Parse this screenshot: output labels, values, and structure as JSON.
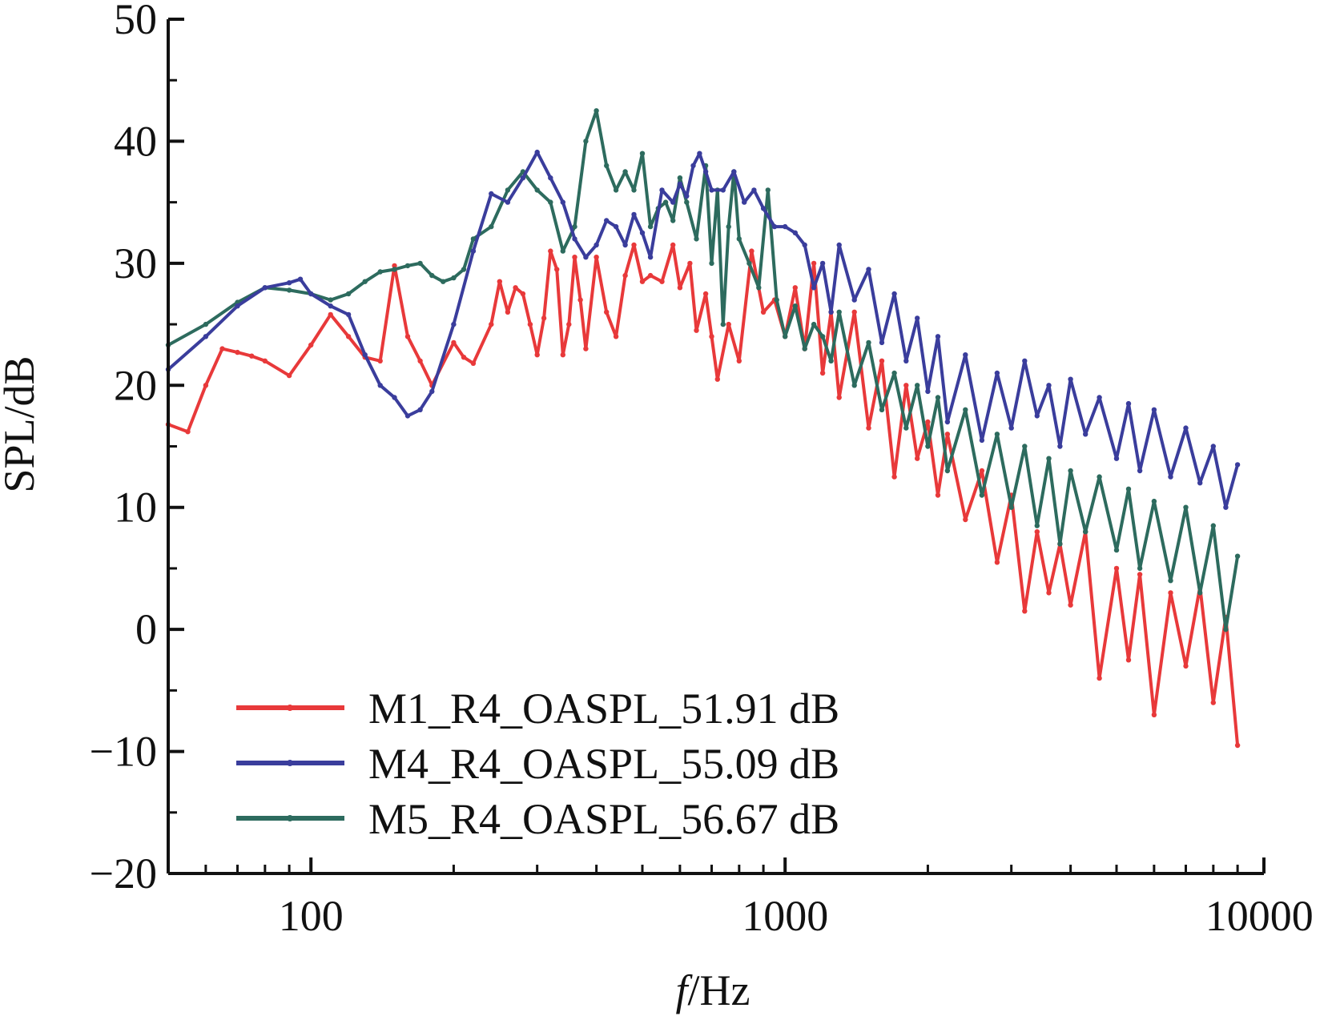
{
  "chart_data": {
    "type": "line",
    "title": "",
    "xlabel_italic": "f",
    "xlabel_rest": "/Hz",
    "ylabel": "SPL/dB",
    "x_scale": "log",
    "xlim": [
      50,
      9000
    ],
    "ylim": [
      -20,
      50
    ],
    "x_tick_labels": [
      "100",
      "1000",
      "10000"
    ],
    "x_tick_values": [
      100,
      1000,
      10000
    ],
    "y_tick_labels": [
      "-20",
      "-10",
      "0",
      "10",
      "20",
      "30",
      "40",
      "50"
    ],
    "y_tick_values": [
      -20,
      -10,
      0,
      10,
      20,
      30,
      40,
      50
    ],
    "grid": false,
    "legend_position": "bottom-left",
    "series": [
      {
        "name": "M1_R4_OASPL_51.91 dB",
        "color": "#e8393a",
        "points": [
          [
            50,
            16.8
          ],
          [
            55,
            16.2
          ],
          [
            60,
            20
          ],
          [
            65,
            23
          ],
          [
            70,
            22.7
          ],
          [
            75,
            22.4
          ],
          [
            80,
            22
          ],
          [
            90,
            20.8
          ],
          [
            100,
            23.3
          ],
          [
            110,
            25.8
          ],
          [
            120,
            24
          ],
          [
            130,
            22.3
          ],
          [
            140,
            22
          ],
          [
            150,
            29.8
          ],
          [
            160,
            24
          ],
          [
            170,
            22
          ],
          [
            180,
            20
          ],
          [
            200,
            23.5
          ],
          [
            210,
            22.3
          ],
          [
            220,
            21.8
          ],
          [
            240,
            25
          ],
          [
            250,
            28.5
          ],
          [
            260,
            26
          ],
          [
            270,
            28
          ],
          [
            280,
            27.5
          ],
          [
            290,
            25
          ],
          [
            300,
            22.5
          ],
          [
            310,
            25.5
          ],
          [
            320,
            31
          ],
          [
            330,
            29.5
          ],
          [
            340,
            22.5
          ],
          [
            350,
            25
          ],
          [
            360,
            30.5
          ],
          [
            370,
            27
          ],
          [
            380,
            23
          ],
          [
            400,
            30.5
          ],
          [
            420,
            26
          ],
          [
            440,
            24
          ],
          [
            460,
            29
          ],
          [
            480,
            31.5
          ],
          [
            500,
            28.5
          ],
          [
            520,
            29
          ],
          [
            550,
            28.5
          ],
          [
            580,
            31.5
          ],
          [
            600,
            28
          ],
          [
            630,
            30
          ],
          [
            650,
            24.5
          ],
          [
            680,
            27.5
          ],
          [
            700,
            24
          ],
          [
            720,
            20.5
          ],
          [
            760,
            25
          ],
          [
            800,
            22
          ],
          [
            850,
            31
          ],
          [
            900,
            26
          ],
          [
            950,
            27
          ],
          [
            1000,
            24
          ],
          [
            1050,
            28
          ],
          [
            1100,
            23
          ],
          [
            1150,
            30
          ],
          [
            1200,
            21
          ],
          [
            1250,
            26
          ],
          [
            1300,
            19
          ],
          [
            1400,
            26
          ],
          [
            1500,
            16.5
          ],
          [
            1600,
            22
          ],
          [
            1700,
            12.5
          ],
          [
            1800,
            20
          ],
          [
            1900,
            14
          ],
          [
            2000,
            17
          ],
          [
            2100,
            11
          ],
          [
            2200,
            16
          ],
          [
            2400,
            9
          ],
          [
            2600,
            13
          ],
          [
            2800,
            5.5
          ],
          [
            3000,
            11
          ],
          [
            3200,
            1.5
          ],
          [
            3400,
            8
          ],
          [
            3600,
            3
          ],
          [
            3800,
            7
          ],
          [
            4000,
            2
          ],
          [
            4300,
            8
          ],
          [
            4600,
            -4
          ],
          [
            5000,
            5
          ],
          [
            5300,
            -2.5
          ],
          [
            5600,
            4.5
          ],
          [
            6000,
            -7
          ],
          [
            6500,
            3
          ],
          [
            7000,
            -3
          ],
          [
            7500,
            3.5
          ],
          [
            8000,
            -6
          ],
          [
            8500,
            1
          ],
          [
            9000,
            -9.5
          ]
        ]
      },
      {
        "name": "M4_R4_OASPL_55.09 dB",
        "color": "#3a3d9c",
        "points": [
          [
            50,
            21.3
          ],
          [
            60,
            24
          ],
          [
            70,
            26.5
          ],
          [
            80,
            28
          ],
          [
            90,
            28.4
          ],
          [
            95,
            28.7
          ],
          [
            100,
            27.5
          ],
          [
            110,
            26.5
          ],
          [
            120,
            25.8
          ],
          [
            130,
            22.5
          ],
          [
            140,
            20
          ],
          [
            150,
            19
          ],
          [
            160,
            17.5
          ],
          [
            170,
            18
          ],
          [
            180,
            19.5
          ],
          [
            200,
            25
          ],
          [
            220,
            31
          ],
          [
            240,
            35.7
          ],
          [
            260,
            35
          ],
          [
            280,
            37
          ],
          [
            300,
            39.1
          ],
          [
            320,
            37
          ],
          [
            340,
            35
          ],
          [
            360,
            32
          ],
          [
            380,
            30.5
          ],
          [
            400,
            31.5
          ],
          [
            420,
            33.5
          ],
          [
            440,
            33
          ],
          [
            460,
            31.5
          ],
          [
            480,
            34
          ],
          [
            500,
            32.5
          ],
          [
            520,
            30.5
          ],
          [
            550,
            36
          ],
          [
            580,
            35
          ],
          [
            600,
            36.5
          ],
          [
            620,
            35.5
          ],
          [
            640,
            38
          ],
          [
            660,
            39
          ],
          [
            680,
            37.5
          ],
          [
            700,
            36
          ],
          [
            740,
            36
          ],
          [
            780,
            37.5
          ],
          [
            820,
            35
          ],
          [
            860,
            36
          ],
          [
            900,
            34.5
          ],
          [
            950,
            33
          ],
          [
            1000,
            33
          ],
          [
            1050,
            32.5
          ],
          [
            1100,
            31.5
          ],
          [
            1150,
            28
          ],
          [
            1200,
            30
          ],
          [
            1250,
            26
          ],
          [
            1300,
            31.5
          ],
          [
            1400,
            27
          ],
          [
            1500,
            29.5
          ],
          [
            1600,
            23.5
          ],
          [
            1700,
            27.5
          ],
          [
            1800,
            22
          ],
          [
            1900,
            25.5
          ],
          [
            2000,
            19.5
          ],
          [
            2100,
            24
          ],
          [
            2200,
            17
          ],
          [
            2400,
            22.5
          ],
          [
            2600,
            15.5
          ],
          [
            2800,
            21
          ],
          [
            3000,
            16.5
          ],
          [
            3200,
            22
          ],
          [
            3400,
            17.5
          ],
          [
            3600,
            20
          ],
          [
            3800,
            15
          ],
          [
            4000,
            20.5
          ],
          [
            4300,
            16
          ],
          [
            4600,
            19
          ],
          [
            5000,
            14
          ],
          [
            5300,
            18.5
          ],
          [
            5600,
            13
          ],
          [
            6000,
            18
          ],
          [
            6500,
            12.5
          ],
          [
            7000,
            16.5
          ],
          [
            7500,
            12
          ],
          [
            8000,
            15
          ],
          [
            8500,
            10
          ],
          [
            9000,
            13.5
          ]
        ]
      },
      {
        "name": "M5_R4_OASPL_56.67 dB",
        "color": "#2d6b5e",
        "points": [
          [
            50,
            23.3
          ],
          [
            60,
            25
          ],
          [
            70,
            26.8
          ],
          [
            80,
            28
          ],
          [
            90,
            27.8
          ],
          [
            100,
            27.5
          ],
          [
            110,
            27
          ],
          [
            120,
            27.5
          ],
          [
            130,
            28.5
          ],
          [
            140,
            29.3
          ],
          [
            150,
            29.5
          ],
          [
            160,
            29.8
          ],
          [
            170,
            30
          ],
          [
            180,
            29
          ],
          [
            190,
            28.5
          ],
          [
            200,
            28.8
          ],
          [
            210,
            29.5
          ],
          [
            220,
            32
          ],
          [
            240,
            33
          ],
          [
            260,
            36
          ],
          [
            280,
            37.5
          ],
          [
            300,
            36
          ],
          [
            320,
            35
          ],
          [
            340,
            31
          ],
          [
            360,
            33
          ],
          [
            380,
            40
          ],
          [
            400,
            42.5
          ],
          [
            420,
            38
          ],
          [
            440,
            36
          ],
          [
            460,
            37.5
          ],
          [
            480,
            36
          ],
          [
            500,
            39
          ],
          [
            520,
            33
          ],
          [
            540,
            34.5
          ],
          [
            560,
            35
          ],
          [
            580,
            33.5
          ],
          [
            600,
            37
          ],
          [
            620,
            35
          ],
          [
            650,
            32
          ],
          [
            680,
            38
          ],
          [
            700,
            30
          ],
          [
            720,
            36
          ],
          [
            740,
            25
          ],
          [
            760,
            33
          ],
          [
            780,
            37.5
          ],
          [
            800,
            32
          ],
          [
            840,
            30
          ],
          [
            880,
            28
          ],
          [
            920,
            36
          ],
          [
            960,
            27
          ],
          [
            1000,
            24
          ],
          [
            1050,
            26.5
          ],
          [
            1100,
            23
          ],
          [
            1150,
            25
          ],
          [
            1200,
            24
          ],
          [
            1250,
            22
          ],
          [
            1300,
            26
          ],
          [
            1400,
            20
          ],
          [
            1500,
            23.5
          ],
          [
            1600,
            18
          ],
          [
            1700,
            21
          ],
          [
            1800,
            16.5
          ],
          [
            1900,
            20
          ],
          [
            2000,
            15
          ],
          [
            2100,
            19
          ],
          [
            2200,
            13
          ],
          [
            2400,
            18
          ],
          [
            2600,
            11
          ],
          [
            2800,
            16
          ],
          [
            3000,
            10
          ],
          [
            3200,
            15
          ],
          [
            3400,
            8.5
          ],
          [
            3600,
            14
          ],
          [
            3800,
            7
          ],
          [
            4000,
            13
          ],
          [
            4300,
            8
          ],
          [
            4600,
            12.5
          ],
          [
            5000,
            6.5
          ],
          [
            5300,
            11.5
          ],
          [
            5600,
            5
          ],
          [
            6000,
            10.5
          ],
          [
            6500,
            4
          ],
          [
            7000,
            10
          ],
          [
            7500,
            3
          ],
          [
            8000,
            8.5
          ],
          [
            8500,
            0
          ],
          [
            9000,
            6
          ]
        ]
      }
    ]
  }
}
